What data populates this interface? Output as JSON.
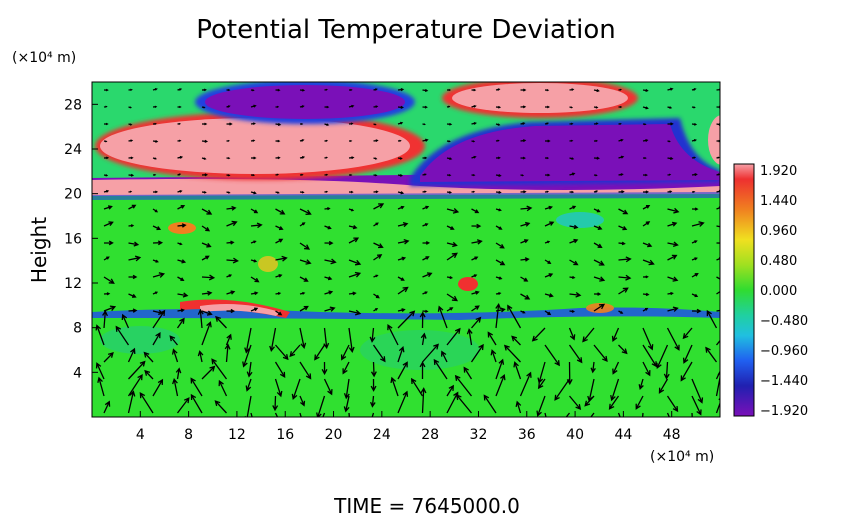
{
  "chart_data": {
    "type": "heatmap",
    "title": "Potential Temperature Deviation",
    "xlabel": "",
    "ylabel": "Height",
    "x_unit": "(×10⁴ m)",
    "y_unit": "(×10⁴ m)",
    "xlim": [
      0,
      52
    ],
    "ylim": [
      0,
      30
    ],
    "x_ticks": [
      4,
      8,
      12,
      16,
      20,
      24,
      28,
      32,
      36,
      40,
      44,
      48
    ],
    "y_ticks": [
      4,
      8,
      12,
      16,
      20,
      24,
      28
    ],
    "colorbar": {
      "min": -1.92,
      "max": 1.92,
      "ticks": [
        "1.920",
        "1.440",
        "0.960",
        "0.480",
        "0.000",
        "−0.480",
        "−0.960",
        "−1.440",
        "−1.920"
      ]
    },
    "overlay": "wind vectors (arrows)",
    "footer": "TIME = 7645000.0",
    "grid": false
  },
  "colors": {
    "background": "#2ee82e",
    "positive_max": "#f6a0a6",
    "negative_max": "#7a10b8"
  }
}
